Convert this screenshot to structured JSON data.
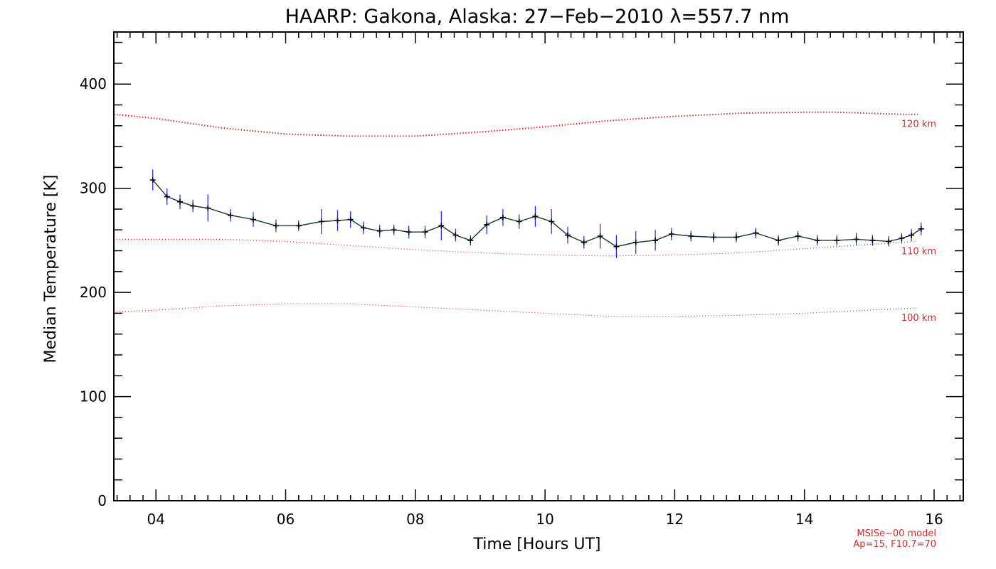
{
  "chart_data": {
    "type": "line",
    "title": "HAARP: Gakona,  Alaska: 27−Feb−2010 λ=557.7 nm",
    "xlabel": "Time [Hours UT]",
    "ylabel": "Median Temperature [K]",
    "xlim": [
      3.35,
      16.45
    ],
    "ylim": [
      0,
      450
    ],
    "xticks": [
      4,
      6,
      8,
      10,
      12,
      14,
      16
    ],
    "xtick_labels": [
      "04",
      "06",
      "08",
      "10",
      "12",
      "14",
      "16"
    ],
    "yticks": [
      0,
      100,
      200,
      300,
      400
    ],
    "ytick_labels": [
      "0",
      "100",
      "200",
      "300",
      "400"
    ],
    "grid": false,
    "colors": {
      "measurement_line": "#0d3b3b",
      "error_bar": "#2020ff",
      "marker": "#000000",
      "model": "#e32626"
    },
    "series": [
      {
        "role": "measurement",
        "x": [
          3.95,
          4.17,
          4.37,
          4.57,
          4.8,
          5.15,
          5.5,
          5.85,
          6.2,
          6.55,
          6.8,
          7.0,
          7.2,
          7.45,
          7.67,
          7.9,
          8.15,
          8.4,
          8.62,
          8.85,
          9.1,
          9.35,
          9.6,
          9.85,
          10.1,
          10.35,
          10.6,
          10.85,
          11.1,
          11.4,
          11.7,
          11.95,
          12.25,
          12.6,
          12.95,
          13.25,
          13.6,
          13.9,
          14.2,
          14.5,
          14.8,
          15.05,
          15.3,
          15.5,
          15.65,
          15.8
        ],
        "y": [
          308,
          292,
          287,
          283,
          281,
          274,
          270,
          264,
          264,
          268,
          269,
          270,
          262,
          259,
          260,
          258,
          258,
          264,
          255,
          250,
          265,
          272,
          268,
          273,
          268,
          255,
          248,
          254,
          244,
          248,
          250,
          256,
          254,
          253,
          253,
          257,
          250,
          254,
          250,
          250,
          251,
          250,
          249,
          252,
          255,
          261
        ],
        "err": [
          10,
          8,
          7,
          6,
          13,
          6,
          7,
          6,
          5,
          12,
          10,
          8,
          6,
          6,
          5,
          6,
          6,
          14,
          6,
          5,
          9,
          8,
          7,
          10,
          12,
          8,
          6,
          12,
          11,
          11,
          10,
          6,
          5,
          5,
          5,
          5,
          5,
          5,
          5,
          5,
          6,
          5,
          5,
          5,
          6,
          6
        ]
      },
      {
        "role": "model",
        "name": "120 km",
        "x": [
          3.35,
          4.0,
          5.0,
          6.0,
          7.0,
          8.0,
          9.0,
          10.0,
          11.0,
          12.0,
          13.0,
          14.0,
          14.5,
          15.0,
          15.5,
          15.75
        ],
        "y": [
          371,
          367,
          358,
          352,
          350,
          350,
          354,
          359,
          365,
          369,
          372,
          373,
          373,
          372,
          371,
          371
        ]
      },
      {
        "role": "model",
        "name": "110 km",
        "x": [
          3.35,
          4.0,
          5.0,
          6.0,
          7.0,
          8.0,
          9.0,
          10.0,
          11.0,
          12.0,
          13.0,
          14.0,
          15.0,
          15.75
        ],
        "y": [
          251,
          251,
          251,
          249,
          245,
          241,
          238,
          236,
          235,
          236,
          238,
          242,
          246,
          249
        ]
      },
      {
        "role": "model",
        "name": "100 km",
        "x": [
          3.35,
          4.0,
          5.0,
          6.0,
          7.0,
          8.0,
          9.0,
          10.0,
          11.0,
          12.0,
          13.0,
          14.0,
          15.0,
          15.75
        ],
        "y": [
          181,
          183,
          187,
          189,
          189,
          186,
          183,
          180,
          177,
          177,
          178,
          180,
          183,
          185
        ]
      }
    ],
    "annotations": [
      "MSISe−00 model",
      "Ap=15, F10.7=70"
    ]
  }
}
